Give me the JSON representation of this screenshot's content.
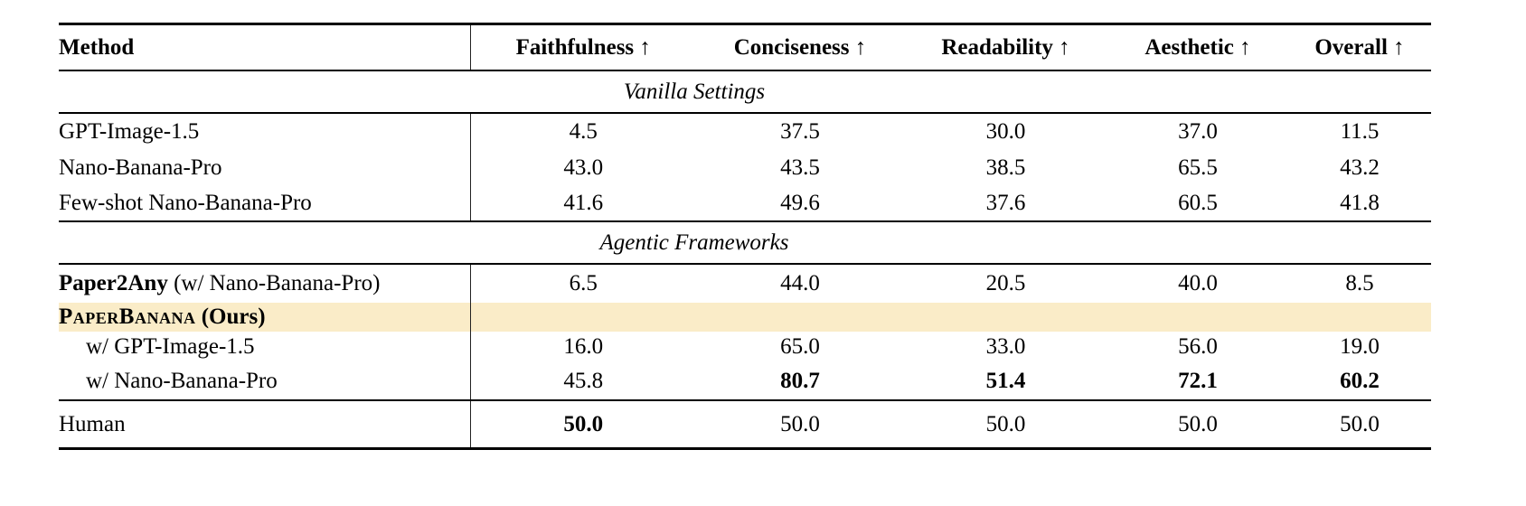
{
  "table": {
    "header": {
      "method": "Method",
      "faithfulness": "Faithfulness ↑",
      "conciseness": "Conciseness ↑",
      "readability": "Readability ↑",
      "aesthetic": "Aesthetic ↑",
      "overall": "Overall ↑"
    },
    "sections": {
      "vanilla": {
        "title": "Vanilla Settings"
      },
      "agentic": {
        "title": "Agentic Frameworks"
      }
    },
    "rows": {
      "gpt_image": {
        "method": "GPT-Image-1.5",
        "values": [
          "4.5",
          "37.5",
          "30.0",
          "37.0",
          "11.5"
        ]
      },
      "nano_banana": {
        "method": "Nano-Banana-Pro",
        "values": [
          "43.0",
          "43.5",
          "38.5",
          "65.5",
          "43.2"
        ]
      },
      "fewshot_nano": {
        "method": "Few-shot Nano-Banana-Pro",
        "values": [
          "41.6",
          "49.6",
          "37.6",
          "60.5",
          "41.8"
        ]
      },
      "paper2any": {
        "method_bold": "Paper2Any",
        "method_rest": " (w/ Nano-Banana-Pro)",
        "values": [
          "6.5",
          "44.0",
          "20.5",
          "40.0",
          "8.5"
        ]
      },
      "paperbanana": {
        "method_smallcaps": "PaperBanana",
        "method_rest": " (Ours)",
        "values": [
          "",
          "",
          "",
          "",
          ""
        ]
      },
      "pb_gpt": {
        "method": "w/ GPT-Image-1.5",
        "values": [
          "16.0",
          "65.0",
          "33.0",
          "56.0",
          "19.0"
        ]
      },
      "pb_nano": {
        "method": "w/ Nano-Banana-Pro",
        "values": [
          "45.8",
          "80.7",
          "51.4",
          "72.1",
          "60.2"
        ],
        "bold_values": [
          false,
          true,
          true,
          true,
          true
        ]
      },
      "human": {
        "method": "Human",
        "values": [
          "50.0",
          "50.0",
          "50.0",
          "50.0",
          "50.0"
        ],
        "bold_values": [
          true,
          false,
          false,
          false,
          false
        ]
      }
    },
    "highlight_color": "#faecc8"
  }
}
